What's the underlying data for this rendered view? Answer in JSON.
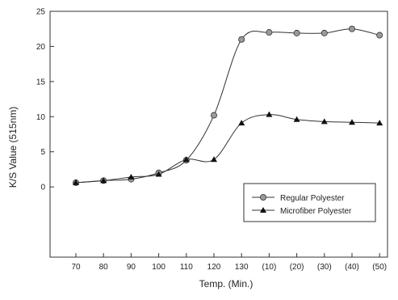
{
  "chart_data": {
    "type": "line",
    "title": "",
    "xlabel": "Temp. (Min.)",
    "ylabel": "K/S Value (515nm)",
    "categories": [
      "70",
      "80",
      "90",
      "100",
      "110",
      "120",
      "130",
      "(10)",
      "(20)",
      "(30)",
      "(40)",
      "(50)"
    ],
    "ylim": [
      -10,
      25
    ],
    "yticks": [
      "0",
      "5",
      "10",
      "15",
      "20",
      "25"
    ],
    "grid": false,
    "legend_position": "bottom-right",
    "series": [
      {
        "name": "Regular Polyester",
        "marker": "circle",
        "color": "#333333",
        "marker_fill": "#9a9a9a",
        "values": [
          0.6,
          0.9,
          1.1,
          2.0,
          3.8,
          10.2,
          21.0,
          22.0,
          21.9,
          21.9,
          22.5,
          21.6
        ]
      },
      {
        "name": "Microfiber Polyester",
        "marker": "triangle",
        "color": "#333333",
        "marker_fill": "#111111",
        "values": [
          0.6,
          0.9,
          1.4,
          1.8,
          3.9,
          3.9,
          9.1,
          10.3,
          9.6,
          9.3,
          9.2,
          9.1
        ]
      }
    ]
  }
}
